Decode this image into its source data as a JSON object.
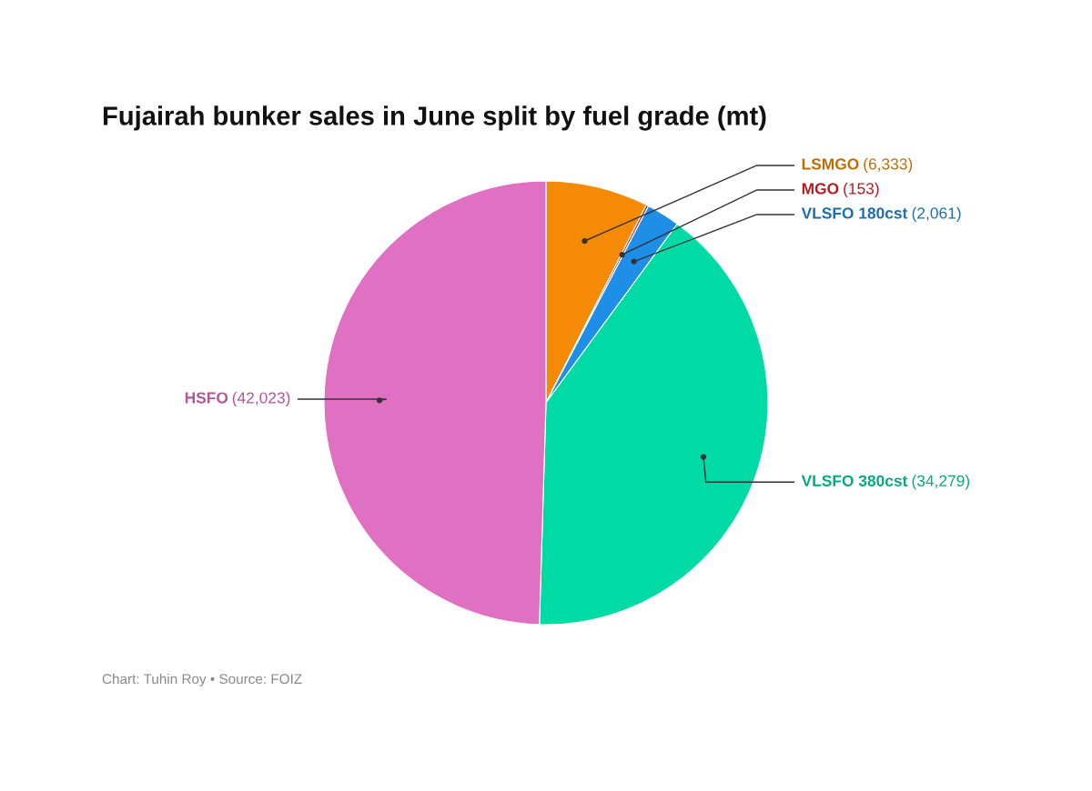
{
  "chart_data": {
    "type": "pie",
    "title": "Fujairah bunker sales in June split by fuel grade (mt)",
    "categories": [
      "LSMGO",
      "MGO",
      "VLSFO 180cst",
      "VLSFO 380cst",
      "HSFO"
    ],
    "values": [
      6333,
      153,
      2061,
      34279,
      42023
    ],
    "value_labels": [
      "(6,333)",
      "(153)",
      "(2,061)",
      "(34,279)",
      "(42,023)"
    ],
    "colors": [
      "#f58a07",
      "#e3262b",
      "#1f8ee6",
      "#00dba6",
      "#e070c2"
    ],
    "legend": false,
    "annotations": [
      "Chart: Tuhin Roy • Source: FOIZ"
    ]
  }
}
